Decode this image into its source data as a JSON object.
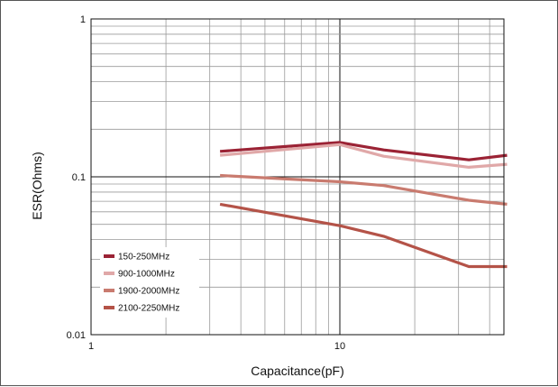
{
  "chart_data": {
    "type": "line",
    "xlabel": "Capacitance(pF)",
    "ylabel": "ESR(Ohms)",
    "x_scale": "log",
    "y_scale": "log",
    "xlim": [
      1,
      50
    ],
    "ylim": [
      0.01,
      1
    ],
    "grid": true,
    "legend_position": "bottom-left",
    "x_ticks": [
      {
        "value": 1,
        "label": "1"
      },
      {
        "value": 10,
        "label": "10"
      }
    ],
    "y_ticks": [
      {
        "value": 0.01,
        "label": "0.01"
      },
      {
        "value": 0.1,
        "label": "0.1"
      },
      {
        "value": 1,
        "label": "1"
      }
    ],
    "series": [
      {
        "name": "150-250MHz",
        "color": "#9b2335",
        "x": [
          3.3,
          10,
          15,
          33,
          47
        ],
        "y": [
          0.145,
          0.165,
          0.148,
          0.128,
          0.137
        ]
      },
      {
        "name": "900-1000MHz",
        "color": "#e0a8a8",
        "x": [
          3.3,
          10,
          15,
          33,
          47
        ],
        "y": [
          0.137,
          0.16,
          0.135,
          0.115,
          0.12
        ]
      },
      {
        "name": "1900-2000MHz",
        "color": "#c97b6f",
        "x": [
          3.3,
          10,
          15,
          33,
          47
        ],
        "y": [
          0.102,
          0.093,
          0.088,
          0.071,
          0.067
        ]
      },
      {
        "name": "2100-2250MHz",
        "color": "#b45348",
        "x": [
          3.3,
          10,
          15,
          33,
          47
        ],
        "y": [
          0.067,
          0.049,
          0.042,
          0.027,
          0.027
        ]
      }
    ]
  }
}
